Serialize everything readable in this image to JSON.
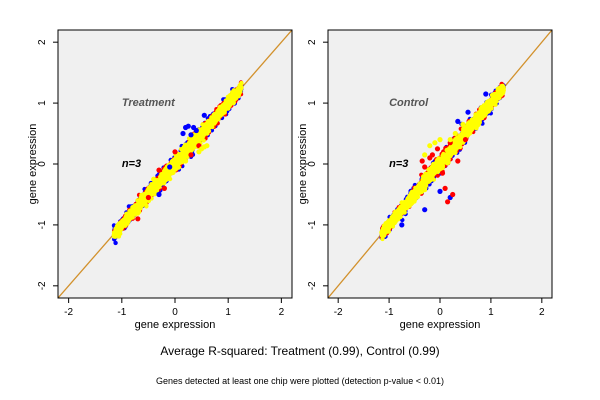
{
  "chart_data": [
    {
      "type": "scatter",
      "title": "Treatment",
      "annotation": "n=3",
      "xlabel": "gene expression",
      "ylabel": "gene expression",
      "xlim": [
        -2.2,
        2.2
      ],
      "ylim": [
        -2.2,
        2.2
      ],
      "xticks": [
        -2,
        -1,
        0,
        1,
        2
      ],
      "yticks": [
        -2,
        -1,
        0,
        1,
        2
      ],
      "reference_line": {
        "slope": 1,
        "intercept": 0
      },
      "x_range_of_points": [
        -1.15,
        1.25
      ],
      "series_colors": [
        "blue",
        "red",
        "yellow"
      ],
      "outliers": {
        "blue": [
          [
            0.2,
            0.6
          ],
          [
            0.25,
            0.62
          ],
          [
            0.35,
            0.6
          ],
          [
            0.4,
            0.55
          ],
          [
            0.15,
            0.5
          ],
          [
            0.3,
            0.48
          ],
          [
            -0.3,
            -0.5
          ],
          [
            -0.1,
            -0.05
          ],
          [
            0.55,
            0.8
          ]
        ],
        "red": [
          [
            -0.7,
            -0.9
          ],
          [
            -0.5,
            -0.55
          ],
          [
            -0.2,
            -0.4
          ],
          [
            0.0,
            0.2
          ],
          [
            0.3,
            0.15
          ],
          [
            -0.3,
            -0.1
          ],
          [
            0.45,
            0.3
          ]
        ],
        "yellow": [
          [
            0.5,
            0.25
          ],
          [
            0.6,
            0.3
          ],
          [
            0.45,
            0.2
          ],
          [
            0.55,
            0.28
          ],
          [
            0.2,
            0.05
          ],
          [
            -0.4,
            -0.25
          ]
        ]
      }
    },
    {
      "type": "scatter",
      "title": "Control",
      "annotation": "n=3",
      "xlabel": "gene expression",
      "ylabel": "gene expression",
      "xlim": [
        -2.2,
        2.2
      ],
      "ylim": [
        -2.2,
        2.2
      ],
      "xticks": [
        -2,
        -1,
        0,
        1,
        2
      ],
      "yticks": [
        -2,
        -1,
        0,
        1,
        2
      ],
      "reference_line": {
        "slope": 1,
        "intercept": 0
      },
      "x_range_of_points": [
        -1.15,
        1.25
      ],
      "series_colors": [
        "blue",
        "red",
        "yellow"
      ],
      "outliers": {
        "blue": [
          [
            0.2,
            -0.55
          ],
          [
            0.0,
            -0.45
          ],
          [
            -0.3,
            -0.75
          ],
          [
            0.55,
            0.85
          ],
          [
            0.35,
            0.7
          ],
          [
            -0.75,
            -1.0
          ],
          [
            0.9,
            1.15
          ]
        ],
        "red": [
          [
            -0.15,
            0.15
          ],
          [
            -0.3,
            -0.05
          ],
          [
            -0.05,
            0.25
          ],
          [
            0.2,
            0.35
          ],
          [
            0.1,
            -0.4
          ],
          [
            0.25,
            -0.5
          ],
          [
            0.15,
            -0.62
          ],
          [
            -0.35,
            0.05
          ],
          [
            0.35,
            0.05
          ],
          [
            -0.2,
            0.1
          ],
          [
            0.5,
            0.4
          ],
          [
            0.05,
            -0.15
          ]
        ],
        "yellow": [
          [
            -0.2,
            0.3
          ],
          [
            -0.1,
            0.35
          ],
          [
            0.0,
            0.4
          ],
          [
            -0.3,
            0.15
          ],
          [
            0.3,
            0.5
          ],
          [
            0.6,
            0.55
          ],
          [
            0.75,
            0.65
          ],
          [
            0.45,
            0.65
          ],
          [
            0.2,
            0.4
          ]
        ]
      }
    }
  ],
  "colors": {
    "blue": "#0000ff",
    "red": "#ff0000",
    "yellow": "#ffff00",
    "reference_line": "#d2912c",
    "panel_background": "#f0f0f0",
    "panel_title": "#555555"
  },
  "captions": {
    "main": "Average R-squared: Treatment (0.99), Control (0.99)",
    "sub": "Genes detected at least one chip were plotted (detection p-value < 0.01)"
  }
}
